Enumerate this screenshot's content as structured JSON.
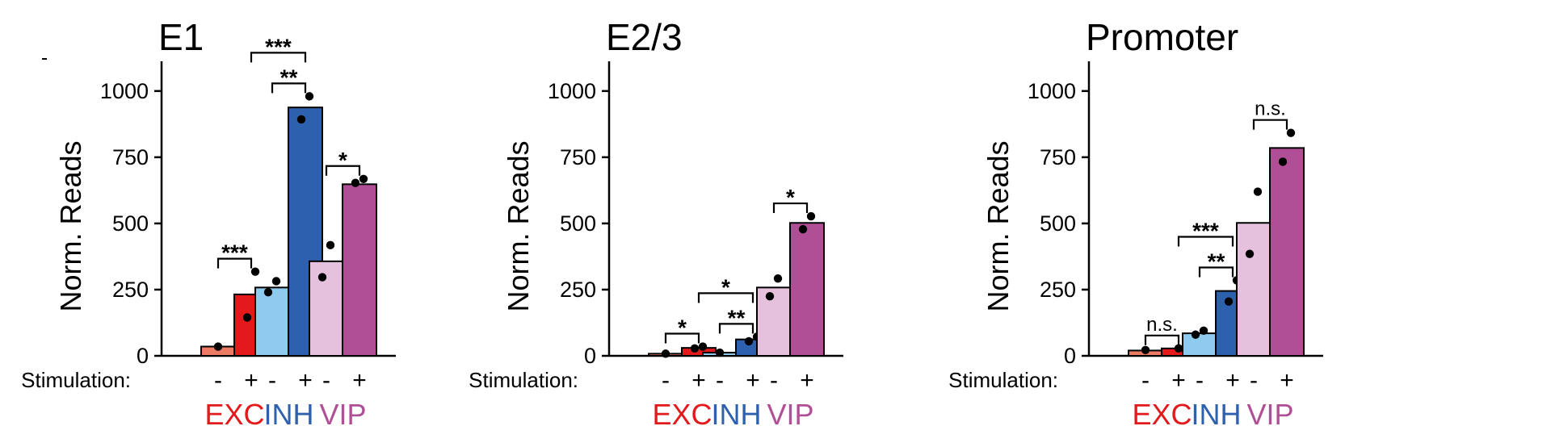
{
  "colors": {
    "EXC": {
      "unstim": "#ec7b65",
      "stim": "#e3191c",
      "label": "#e3191c"
    },
    "INH": {
      "unstim": "#8fcbef",
      "stim": "#2e61ad",
      "label": "#2e61ad"
    },
    "VIP": {
      "unstim": "#e5c1dd",
      "stim": "#b04e96",
      "label": "#b04e96"
    }
  },
  "chart_data": [
    {
      "type": "bar",
      "title": "E1",
      "ylabel": "Norm. Reads",
      "ylim": [
        0,
        1100
      ],
      "yticks": [
        0,
        250,
        500,
        750,
        1000
      ],
      "stim_label": "Stimulation:",
      "groups": [
        "EXC",
        "INH",
        "VIP"
      ],
      "conditions": [
        "-",
        "+"
      ],
      "bars": [
        {
          "group": "EXC",
          "condition": "-",
          "value": 35,
          "points": [
            35
          ]
        },
        {
          "group": "EXC",
          "condition": "+",
          "value": 232,
          "points": [
            318,
            145
          ]
        },
        {
          "group": "INH",
          "condition": "-",
          "value": 258,
          "points": [
            282,
            240
          ]
        },
        {
          "group": "INH",
          "condition": "+",
          "value": 938,
          "points": [
            980,
            893
          ]
        },
        {
          "group": "VIP",
          "condition": "-",
          "value": 357,
          "points": [
            418,
            297
          ]
        },
        {
          "group": "VIP",
          "condition": "+",
          "value": 648,
          "points": [
            668,
            653
          ]
        }
      ],
      "significance": [
        {
          "from": 0,
          "to": 1,
          "label": "***",
          "level": 0
        },
        {
          "from": 2,
          "to": 3,
          "label": "**",
          "level": 0
        },
        {
          "from": 1,
          "to": 3,
          "label": "***",
          "level": 1
        },
        {
          "from": 4,
          "to": 5,
          "label": "*",
          "level": 0
        }
      ]
    },
    {
      "type": "bar",
      "title": "E2/3",
      "ylabel": "Norm. Reads",
      "ylim": [
        0,
        1100
      ],
      "yticks": [
        0,
        250,
        500,
        750,
        1000
      ],
      "stim_label": "Stimulation:",
      "groups": [
        "EXC",
        "INH",
        "VIP"
      ],
      "conditions": [
        "-",
        "+"
      ],
      "bars": [
        {
          "group": "EXC",
          "condition": "-",
          "value": 8,
          "points": [
            8
          ]
        },
        {
          "group": "EXC",
          "condition": "+",
          "value": 30,
          "points": [
            35,
            28
          ]
        },
        {
          "group": "INH",
          "condition": "-",
          "value": 12,
          "points": [
            12
          ]
        },
        {
          "group": "INH",
          "condition": "+",
          "value": 62,
          "points": [
            72,
            55
          ]
        },
        {
          "group": "VIP",
          "condition": "-",
          "value": 258,
          "points": [
            292,
            225
          ]
        },
        {
          "group": "VIP",
          "condition": "+",
          "value": 502,
          "points": [
            527,
            478
          ]
        }
      ],
      "significance": [
        {
          "from": 0,
          "to": 1,
          "label": "*",
          "level": 0
        },
        {
          "from": 2,
          "to": 3,
          "label": "**",
          "level": 0
        },
        {
          "from": 1,
          "to": 3,
          "label": "*",
          "level": 1
        },
        {
          "from": 4,
          "to": 5,
          "label": "*",
          "level": 0
        }
      ]
    },
    {
      "type": "bar",
      "title": "Promoter",
      "ylabel": "Norm. Reads",
      "ylim": [
        0,
        1100
      ],
      "yticks": [
        0,
        250,
        500,
        750,
        1000
      ],
      "stim_label": "Stimulation:",
      "groups": [
        "EXC",
        "INH",
        "VIP"
      ],
      "conditions": [
        "-",
        "+"
      ],
      "bars": [
        {
          "group": "EXC",
          "condition": "-",
          "value": 20,
          "points": [
            22
          ]
        },
        {
          "group": "EXC",
          "condition": "+",
          "value": 28,
          "points": [
            28
          ]
        },
        {
          "group": "INH",
          "condition": "-",
          "value": 85,
          "points": [
            95,
            80
          ]
        },
        {
          "group": "INH",
          "condition": "+",
          "value": 245,
          "points": [
            285,
            205
          ]
        },
        {
          "group": "VIP",
          "condition": "-",
          "value": 502,
          "points": [
            620,
            385
          ]
        },
        {
          "group": "VIP",
          "condition": "+",
          "value": 785,
          "points": [
            842,
            733
          ]
        }
      ],
      "significance": [
        {
          "from": 0,
          "to": 1,
          "label": "n.s.",
          "level": 0
        },
        {
          "from": 2,
          "to": 3,
          "label": "**",
          "level": 0
        },
        {
          "from": 1,
          "to": 3,
          "label": "***",
          "level": 1
        },
        {
          "from": 4,
          "to": 5,
          "label": "n.s.",
          "level": 0
        }
      ]
    }
  ]
}
